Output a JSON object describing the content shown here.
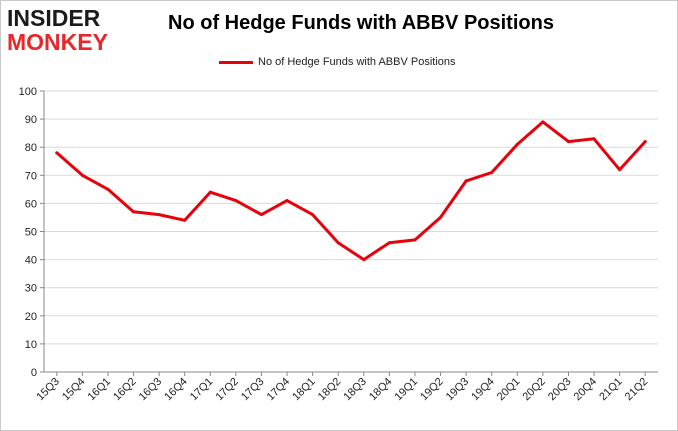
{
  "logo": {
    "line1": "INSIDER",
    "line2": "MONKEY"
  },
  "chart_data": {
    "type": "line",
    "title": "No of Hedge Funds with ABBV Positions",
    "xlabel": "",
    "ylabel": "",
    "ylim": [
      0,
      100
    ],
    "yticks": [
      0,
      10,
      20,
      30,
      40,
      50,
      60,
      70,
      80,
      90,
      100
    ],
    "grid": "horizontal",
    "legend_position": "top-center",
    "categories": [
      "15Q3",
      "15Q4",
      "16Q1",
      "16Q2",
      "16Q3",
      "16Q4",
      "17Q1",
      "17Q2",
      "17Q3",
      "17Q4",
      "18Q1",
      "18Q2",
      "18Q3",
      "18Q4",
      "19Q1",
      "19Q2",
      "19Q3",
      "19Q4",
      "20Q1",
      "20Q2",
      "20Q3",
      "20Q4",
      "21Q1",
      "21Q2"
    ],
    "series": [
      {
        "name": "No of Hedge Funds with ABBV Positions",
        "color": "#e8000b",
        "values": [
          78,
          70,
          65,
          57,
          56,
          54,
          64,
          61,
          56,
          61,
          56,
          46,
          40,
          46,
          47,
          55,
          68,
          71,
          81,
          89,
          82,
          83,
          72,
          82
        ]
      }
    ]
  }
}
